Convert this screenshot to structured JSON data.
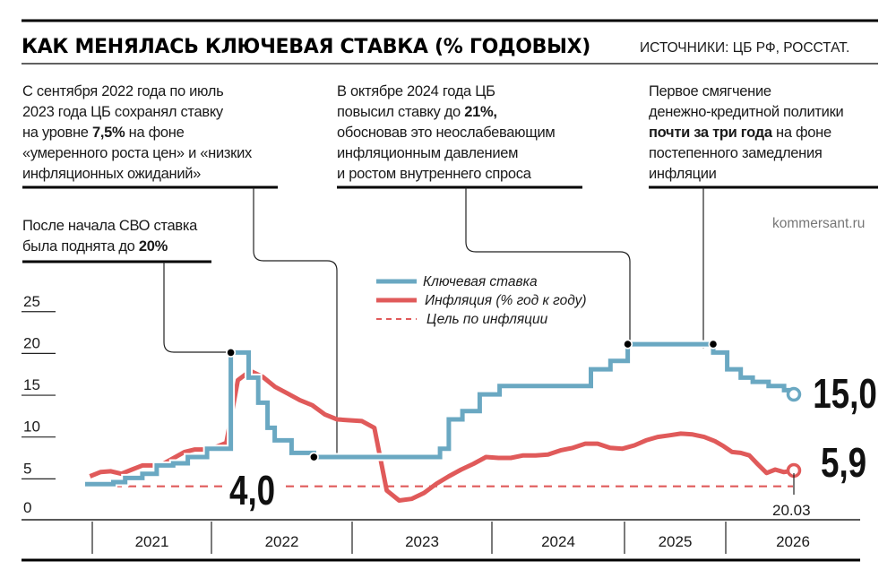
{
  "header": {
    "title": "КАК МЕНЯЛАСЬ КЛЮЧЕВАЯ СТАВКА (% ГОДОВЫХ)",
    "sources": "ИСТОЧНИКИ: ЦБ РФ, РОССТАТ."
  },
  "site": "kommersant.ru",
  "annotations": [
    {
      "lines": [
        [
          {
            "t": "С сентября 2022 года по июль"
          }
        ],
        [
          {
            "t": "2023 года ЦБ сохранял ставку"
          }
        ],
        [
          {
            "t": "на уровне "
          },
          {
            "t": "7,5%",
            "b": true
          },
          {
            "t": " на фоне"
          }
        ],
        [
          {
            "t": "«умеренного роста цен» и «низких"
          }
        ],
        [
          {
            "t": "инфляционных ожиданий»"
          }
        ]
      ]
    },
    {
      "lines": [
        [
          {
            "t": "В октябре 2024 года ЦБ"
          }
        ],
        [
          {
            "t": "повысил ставку до "
          },
          {
            "t": "21%,",
            "b": true
          }
        ],
        [
          {
            "t": "обосновав это неослабевающим"
          }
        ],
        [
          {
            "t": "инфляционным давлением"
          }
        ],
        [
          {
            "t": "и ростом внутреннего спроса"
          }
        ]
      ]
    },
    {
      "lines": [
        [
          {
            "t": "Первое смягчение"
          }
        ],
        [
          {
            "t": "денежно-кредитной политики"
          }
        ],
        [
          {
            "t": "почти за три года",
            "b": true
          },
          {
            "t": " на фоне"
          }
        ],
        [
          {
            "t": "постепенного замедления"
          }
        ],
        [
          {
            "t": "инфляции"
          }
        ]
      ]
    },
    {
      "lines": [
        [
          {
            "t": "После начала СВО ставка"
          }
        ],
        [
          {
            "t": "была поднята до "
          },
          {
            "t": "20%",
            "b": true
          }
        ]
      ]
    }
  ],
  "chart_data": {
    "type": "line",
    "title": "КАК МЕНЯЛАСЬ КЛЮЧЕВАЯ СТАВКА (% ГОДОВЫХ)",
    "ylim": [
      0,
      25
    ],
    "yticks": [
      "0",
      "5",
      "10",
      "15",
      "20",
      "25"
    ],
    "xticks": [
      "2021",
      "2022",
      "2023",
      "2024",
      "2025",
      "2026"
    ],
    "grid": false,
    "legend_placement": "top-center",
    "colors": {
      "key_rate": "#6aa8c2",
      "inflation": "#e05a5a",
      "target": "#e05a5a"
    },
    "series": [
      {
        "name": "Ключевая ставка",
        "style": "step",
        "points": [
          [
            "2021-01-01",
            4.25
          ],
          [
            "2021-03-22",
            4.5
          ],
          [
            "2021-04-26",
            5.0
          ],
          [
            "2021-06-15",
            5.5
          ],
          [
            "2021-07-26",
            6.5
          ],
          [
            "2021-09-13",
            6.75
          ],
          [
            "2021-10-25",
            7.5
          ],
          [
            "2021-12-20",
            8.5
          ],
          [
            "2022-02-28",
            20.0
          ],
          [
            "2022-04-11",
            17.0
          ],
          [
            "2022-05-04",
            14.0
          ],
          [
            "2022-05-27",
            11.0
          ],
          [
            "2022-06-14",
            9.5
          ],
          [
            "2022-07-25",
            8.0
          ],
          [
            "2022-09-19",
            7.5
          ],
          [
            "2023-07-24",
            8.5
          ],
          [
            "2023-08-15",
            12.0
          ],
          [
            "2023-09-18",
            13.0
          ],
          [
            "2023-10-30",
            15.0
          ],
          [
            "2023-12-18",
            16.0
          ],
          [
            "2024-07-29",
            18.0
          ],
          [
            "2024-09-16",
            19.0
          ],
          [
            "2024-10-28",
            21.0
          ],
          [
            "2025-06-09",
            20.0
          ],
          [
            "2025-07-28",
            18.0
          ],
          [
            "2025-09-15",
            17.0
          ],
          [
            "2025-10-27",
            16.5
          ],
          [
            "2025-12-22",
            16.0
          ],
          [
            "2026-02-16",
            15.5
          ],
          [
            "2026-03-20",
            15.0
          ]
        ]
      },
      {
        "name": "Инфляция (% год к году)",
        "style": "line",
        "points": [
          [
            "2021-01-15",
            5.2
          ],
          [
            "2021-02-15",
            5.7
          ],
          [
            "2021-03-15",
            5.8
          ],
          [
            "2021-04-15",
            5.5
          ],
          [
            "2021-05-15",
            6.0
          ],
          [
            "2021-06-15",
            6.5
          ],
          [
            "2021-07-15",
            6.5
          ],
          [
            "2021-08-15",
            6.7
          ],
          [
            "2021-09-15",
            7.4
          ],
          [
            "2021-10-15",
            8.1
          ],
          [
            "2021-11-15",
            8.4
          ],
          [
            "2021-12-15",
            8.4
          ],
          [
            "2022-01-15",
            8.7
          ],
          [
            "2022-02-15",
            9.2
          ],
          [
            "2022-03-15",
            16.7
          ],
          [
            "2022-04-15",
            17.8
          ],
          [
            "2022-05-15",
            17.1
          ],
          [
            "2022-06-15",
            15.9
          ],
          [
            "2022-07-15",
            15.1
          ],
          [
            "2022-08-15",
            14.3
          ],
          [
            "2022-09-15",
            13.7
          ],
          [
            "2022-10-15",
            12.6
          ],
          [
            "2022-11-15",
            12.0
          ],
          [
            "2022-12-15",
            11.9
          ],
          [
            "2023-01-15",
            11.8
          ],
          [
            "2023-02-15",
            11.0
          ],
          [
            "2023-03-15",
            3.5
          ],
          [
            "2023-04-15",
            2.3
          ],
          [
            "2023-05-15",
            2.5
          ],
          [
            "2023-06-15",
            3.2
          ],
          [
            "2023-07-15",
            4.3
          ],
          [
            "2023-08-15",
            5.2
          ],
          [
            "2023-09-15",
            6.0
          ],
          [
            "2023-10-15",
            6.7
          ],
          [
            "2023-11-15",
            7.5
          ],
          [
            "2023-12-15",
            7.4
          ],
          [
            "2024-01-15",
            7.4
          ],
          [
            "2024-02-15",
            7.7
          ],
          [
            "2024-03-15",
            7.7
          ],
          [
            "2024-04-15",
            7.8
          ],
          [
            "2024-05-15",
            8.3
          ],
          [
            "2024-06-15",
            8.6
          ],
          [
            "2024-07-15",
            9.1
          ],
          [
            "2024-08-15",
            9.1
          ],
          [
            "2024-09-15",
            8.6
          ],
          [
            "2024-10-15",
            8.5
          ],
          [
            "2024-11-15",
            8.9
          ],
          [
            "2024-12-15",
            9.5
          ],
          [
            "2025-01-15",
            9.9
          ],
          [
            "2025-02-15",
            10.1
          ],
          [
            "2025-03-15",
            10.3
          ],
          [
            "2025-04-15",
            10.2
          ],
          [
            "2025-05-15",
            9.9
          ],
          [
            "2025-06-15",
            9.4
          ],
          [
            "2025-07-15",
            8.8
          ],
          [
            "2025-08-15",
            8.1
          ],
          [
            "2025-09-15",
            8.0
          ],
          [
            "2025-10-15",
            7.7
          ],
          [
            "2025-11-15",
            6.6
          ],
          [
            "2025-12-15",
            5.6
          ],
          [
            "2026-01-15",
            6.0
          ],
          [
            "2026-02-15",
            5.7
          ],
          [
            "2026-03-20",
            5.9
          ]
        ]
      },
      {
        "name": "Цель по инфляции",
        "style": "dashed",
        "value": 4.0
      }
    ],
    "labels": {
      "target": "4,0",
      "key_rate_last": "15,0",
      "inflation_last": "5,9",
      "last_date": "20.03"
    },
    "markers": [
      "2022-02-28",
      "2022-09-19",
      "2024-10-28",
      "2025-06-09"
    ]
  }
}
